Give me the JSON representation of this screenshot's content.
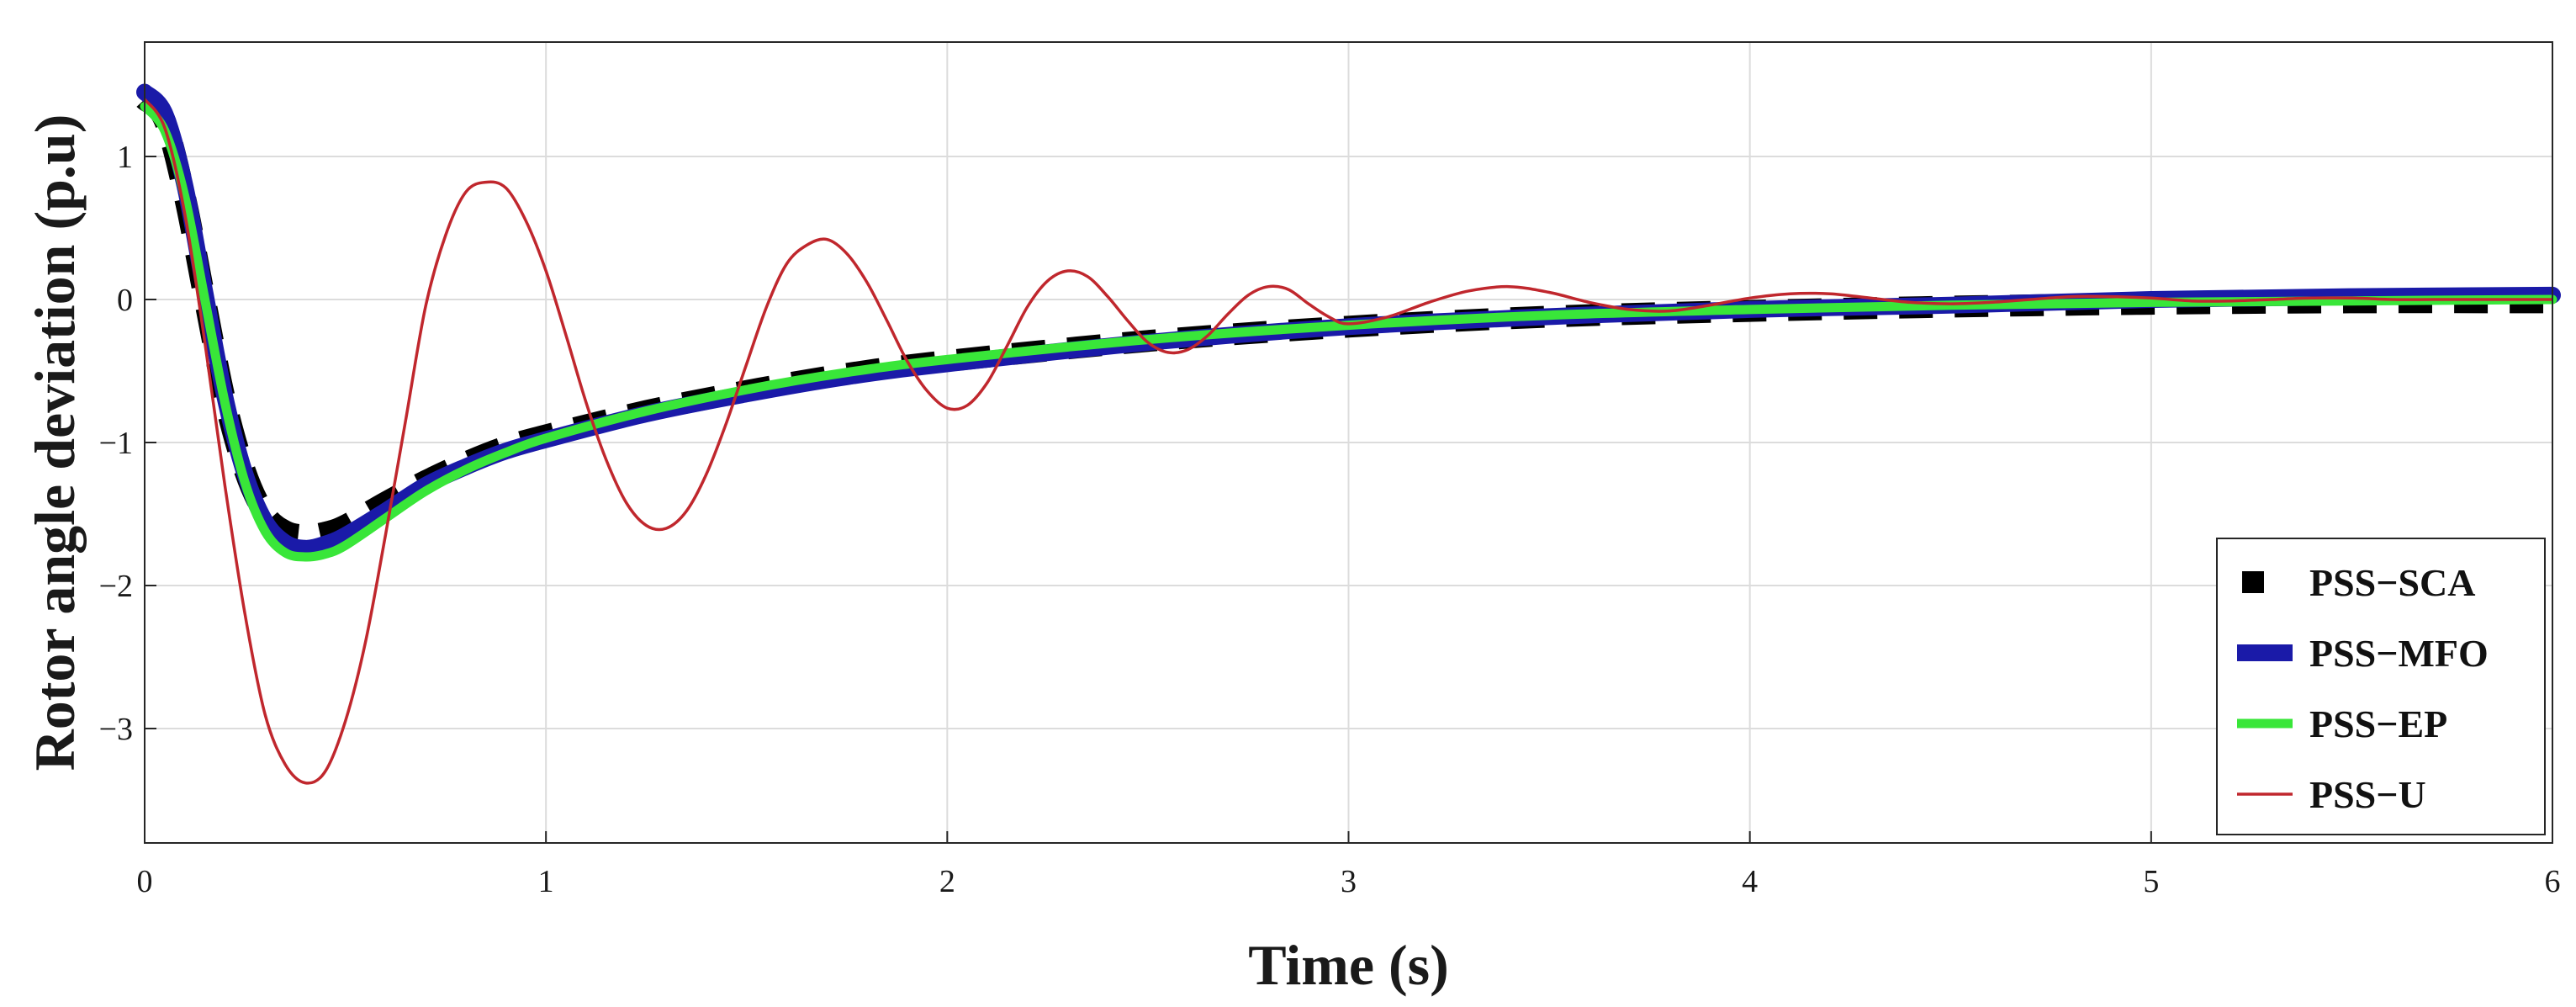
{
  "chart_data": {
    "type": "line",
    "title": "",
    "xlabel": "Time (s)",
    "ylabel": "Rotor angle deviation (p.u)",
    "xlim": [
      0,
      6
    ],
    "ylim": [
      -3.8,
      1.8
    ],
    "xticks": [
      0,
      1,
      2,
      3,
      4,
      5,
      6
    ],
    "xtick_labels": [
      "0",
      "1",
      "2",
      "3",
      "4",
      "5",
      "6"
    ],
    "yticks": [
      1,
      0,
      -1,
      -2,
      -3
    ],
    "ytick_labels": [
      "1",
      "0",
      "−1",
      "−2",
      "−3"
    ],
    "grid": true,
    "legend_position": "bottom-right",
    "series": [
      {
        "name": "PSS−SCA",
        "color": "#000000",
        "style": "dashed",
        "x": [
          0,
          0.05,
          0.1,
          0.15,
          0.2,
          0.25,
          0.3,
          0.35,
          0.4,
          0.45,
          0.5,
          0.6,
          0.7,
          0.8,
          0.9,
          1.0,
          1.25,
          1.5,
          1.75,
          2.0,
          2.5,
          3.0,
          3.5,
          4.0,
          4.5,
          5.0,
          5.5,
          6.0
        ],
        "y": [
          1.4,
          1.25,
          0.72,
          0.0,
          -0.7,
          -1.2,
          -1.5,
          -1.62,
          -1.65,
          -1.63,
          -1.58,
          -1.42,
          -1.27,
          -1.14,
          -1.03,
          -0.95,
          -0.78,
          -0.64,
          -0.52,
          -0.43,
          -0.29,
          -0.19,
          -0.12,
          -0.08,
          -0.05,
          -0.03,
          -0.02,
          -0.02
        ]
      },
      {
        "name": "PSS−MFO",
        "color": "#1a1aa8",
        "style": "solid",
        "x": [
          0,
          0.05,
          0.1,
          0.15,
          0.2,
          0.25,
          0.3,
          0.35,
          0.4,
          0.45,
          0.5,
          0.6,
          0.7,
          0.8,
          0.9,
          1.0,
          1.25,
          1.5,
          1.75,
          2.0,
          2.5,
          3.0,
          3.5,
          4.0,
          4.5,
          5.0,
          5.5,
          6.0
        ],
        "y": [
          1.45,
          1.3,
          0.8,
          0.05,
          -0.68,
          -1.22,
          -1.55,
          -1.7,
          -1.74,
          -1.71,
          -1.65,
          -1.48,
          -1.3,
          -1.17,
          -1.06,
          -0.98,
          -0.8,
          -0.66,
          -0.54,
          -0.45,
          -0.3,
          -0.19,
          -0.12,
          -0.07,
          -0.04,
          0.0,
          0.02,
          0.03
        ]
      },
      {
        "name": "PSS−EP",
        "color": "#39e639",
        "style": "solid",
        "x": [
          0,
          0.05,
          0.1,
          0.15,
          0.2,
          0.25,
          0.3,
          0.35,
          0.4,
          0.45,
          0.5,
          0.6,
          0.7,
          0.8,
          0.9,
          1.0,
          1.25,
          1.5,
          1.75,
          2.0,
          2.5,
          3.0,
          3.5,
          4.0,
          4.5,
          5.0,
          5.5,
          6.0
        ],
        "y": [
          1.35,
          1.18,
          0.72,
          0.0,
          -0.72,
          -1.28,
          -1.62,
          -1.77,
          -1.8,
          -1.78,
          -1.72,
          -1.53,
          -1.34,
          -1.19,
          -1.07,
          -0.97,
          -0.78,
          -0.63,
          -0.51,
          -0.42,
          -0.28,
          -0.18,
          -0.11,
          -0.07,
          -0.04,
          -0.02,
          -0.01,
          0.0
        ]
      },
      {
        "name": "PSS−U",
        "color": "#c0272d",
        "style": "solid",
        "x": [
          0,
          0.05,
          0.1,
          0.15,
          0.2,
          0.25,
          0.3,
          0.35,
          0.4,
          0.45,
          0.5,
          0.55,
          0.6,
          0.65,
          0.7,
          0.75,
          0.8,
          0.85,
          0.9,
          0.95,
          1.0,
          1.05,
          1.1,
          1.15,
          1.2,
          1.25,
          1.3,
          1.35,
          1.4,
          1.45,
          1.5,
          1.55,
          1.6,
          1.65,
          1.7,
          1.75,
          1.8,
          1.85,
          1.9,
          1.95,
          2.0,
          2.05,
          2.1,
          2.15,
          2.2,
          2.25,
          2.3,
          2.35,
          2.4,
          2.45,
          2.5,
          2.55,
          2.6,
          2.65,
          2.7,
          2.75,
          2.8,
          2.85,
          2.9,
          2.95,
          3.0,
          3.1,
          3.2,
          3.3,
          3.4,
          3.5,
          3.6,
          3.7,
          3.8,
          3.9,
          4.0,
          4.1,
          4.2,
          4.3,
          4.4,
          4.5,
          4.6,
          4.7,
          4.8,
          4.9,
          5.0,
          5.1,
          5.2,
          5.3,
          5.4,
          5.5,
          5.6,
          5.7,
          5.8,
          5.9,
          6.0
        ],
        "y": [
          1.4,
          1.2,
          0.6,
          -0.3,
          -1.3,
          -2.2,
          -2.9,
          -3.25,
          -3.38,
          -3.3,
          -2.95,
          -2.4,
          -1.65,
          -0.85,
          -0.05,
          0.45,
          0.75,
          0.82,
          0.78,
          0.55,
          0.2,
          -0.25,
          -0.72,
          -1.12,
          -1.42,
          -1.58,
          -1.6,
          -1.48,
          -1.22,
          -0.86,
          -0.45,
          -0.05,
          0.25,
          0.38,
          0.42,
          0.32,
          0.12,
          -0.15,
          -0.43,
          -0.64,
          -0.76,
          -0.74,
          -0.58,
          -0.32,
          -0.05,
          0.13,
          0.2,
          0.16,
          0.02,
          -0.15,
          -0.3,
          -0.37,
          -0.35,
          -0.25,
          -0.1,
          0.03,
          0.09,
          0.07,
          -0.03,
          -0.12,
          -0.17,
          -0.12,
          -0.02,
          0.06,
          0.09,
          0.05,
          -0.02,
          -0.07,
          -0.08,
          -0.04,
          0.01,
          0.04,
          0.04,
          0.01,
          -0.02,
          -0.03,
          -0.02,
          0.0,
          0.02,
          0.02,
          0.01,
          -0.01,
          -0.01,
          0.0,
          0.01,
          0.01,
          0.0,
          0.0,
          0.0,
          0.0,
          0.0
        ]
      }
    ]
  }
}
